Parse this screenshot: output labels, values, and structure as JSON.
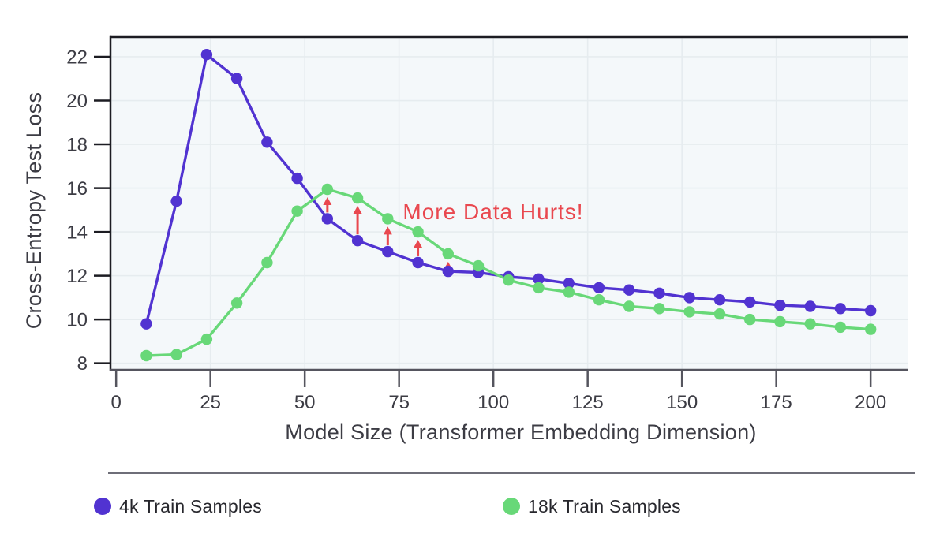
{
  "chart_data": {
    "type": "line",
    "title": "",
    "xlabel": "Model Size (Transformer Embedding Dimension)",
    "ylabel": "Cross-Entropy Test Loss",
    "x": [
      8,
      16,
      24,
      32,
      40,
      48,
      56,
      64,
      72,
      80,
      88,
      96,
      104,
      112,
      120,
      128,
      136,
      144,
      152,
      160,
      168,
      176,
      184,
      192,
      200
    ],
    "series": [
      {
        "name": "4k Train Samples",
        "color": "#5133d1",
        "values": [
          9.8,
          15.4,
          22.1,
          21.0,
          18.1,
          16.45,
          14.6,
          13.6,
          13.1,
          12.6,
          12.2,
          12.15,
          11.95,
          11.85,
          11.65,
          11.45,
          11.35,
          11.2,
          11.0,
          10.9,
          10.8,
          10.65,
          10.6,
          10.5,
          10.4
        ]
      },
      {
        "name": "18k Train Samples",
        "color": "#68d878",
        "values": [
          8.35,
          8.4,
          9.1,
          10.75,
          12.6,
          14.95,
          15.95,
          15.55,
          14.6,
          14.0,
          13.0,
          12.45,
          11.8,
          11.45,
          11.25,
          10.9,
          10.6,
          10.5,
          10.35,
          10.25,
          10.0,
          9.9,
          9.8,
          9.65,
          9.55
        ]
      }
    ],
    "xticks": [
      0,
      25,
      50,
      75,
      100,
      125,
      150,
      175,
      200
    ],
    "yticks": [
      8,
      10,
      12,
      14,
      16,
      18,
      20,
      22
    ],
    "xlim": [
      -1.5,
      209.8
    ],
    "ylim": [
      7.7,
      22.9
    ],
    "grid": true,
    "legend_position": "bottom",
    "annotation": {
      "text": "More Data Hurts!",
      "color": "#e9484f"
    },
    "arrows": {
      "color": "#e9484f",
      "x_positions": [
        56,
        64,
        72,
        80,
        88
      ],
      "from_series": "4k Train Samples",
      "to_series": "18k Train Samples"
    }
  }
}
